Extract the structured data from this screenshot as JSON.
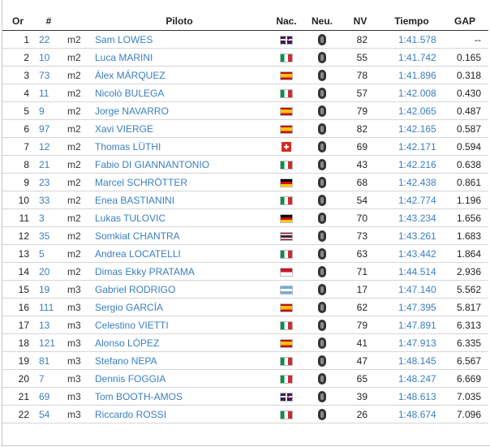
{
  "headers": {
    "or": "Or",
    "num": "#",
    "piloto": "Piloto",
    "nac": "Nac.",
    "neu": "Neu.",
    "nv": "NV",
    "tiempo": "Tiempo",
    "gap": "GAP"
  },
  "rows": [
    {
      "or": "1",
      "num": "22",
      "cat": "m2",
      "piloto": "Sam LOWES",
      "flag": "gb",
      "nv": "82",
      "tiempo": "1:41.578",
      "gap": "--"
    },
    {
      "or": "2",
      "num": "10",
      "cat": "m2",
      "piloto": "Luca MARINI",
      "flag": "it",
      "nv": "55",
      "tiempo": "1:41.742",
      "gap": "0.165"
    },
    {
      "or": "3",
      "num": "73",
      "cat": "m2",
      "piloto": "Álex MÁRQUEZ",
      "flag": "es",
      "nv": "78",
      "tiempo": "1:41.896",
      "gap": "0.318"
    },
    {
      "or": "4",
      "num": "11",
      "cat": "m2",
      "piloto": "Nicolò BULEGA",
      "flag": "it",
      "nv": "57",
      "tiempo": "1:42.008",
      "gap": "0.430"
    },
    {
      "or": "5",
      "num": "9",
      "cat": "m2",
      "piloto": "Jorge NAVARRO",
      "flag": "es",
      "nv": "79",
      "tiempo": "1:42.065",
      "gap": "0.487"
    },
    {
      "or": "6",
      "num": "97",
      "cat": "m2",
      "piloto": "Xavi VIERGE",
      "flag": "es",
      "nv": "82",
      "tiempo": "1:42.165",
      "gap": "0.587"
    },
    {
      "or": "7",
      "num": "12",
      "cat": "m2",
      "piloto": "Thomas LÜTHI",
      "flag": "ch",
      "nv": "69",
      "tiempo": "1:42.171",
      "gap": "0.594"
    },
    {
      "or": "8",
      "num": "21",
      "cat": "m2",
      "piloto": "Fabio DI GIANNANTONIO",
      "flag": "it",
      "nv": "43",
      "tiempo": "1:42.216",
      "gap": "0.638"
    },
    {
      "or": "9",
      "num": "23",
      "cat": "m2",
      "piloto": "Marcel SCHRÖTTER",
      "flag": "de",
      "nv": "68",
      "tiempo": "1:42.438",
      "gap": "0.861"
    },
    {
      "or": "10",
      "num": "33",
      "cat": "m2",
      "piloto": "Enea BASTIANINI",
      "flag": "it",
      "nv": "54",
      "tiempo": "1:42.774",
      "gap": "1.196"
    },
    {
      "or": "11",
      "num": "3",
      "cat": "m2",
      "piloto": "Lukas TULOVIC",
      "flag": "de",
      "nv": "70",
      "tiempo": "1:43.234",
      "gap": "1.656"
    },
    {
      "or": "12",
      "num": "35",
      "cat": "m2",
      "piloto": "Somkiat CHANTRA",
      "flag": "th",
      "nv": "73",
      "tiempo": "1:43.261",
      "gap": "1.683"
    },
    {
      "or": "13",
      "num": "5",
      "cat": "m2",
      "piloto": "Andrea LOCATELLI",
      "flag": "it",
      "nv": "63",
      "tiempo": "1:43.442",
      "gap": "1.864"
    },
    {
      "or": "14",
      "num": "20",
      "cat": "m2",
      "piloto": "Dimas Ekky PRATAMA",
      "flag": "id",
      "nv": "71",
      "tiempo": "1:44.514",
      "gap": "2.936"
    },
    {
      "or": "15",
      "num": "19",
      "cat": "m3",
      "piloto": "Gabriel RODRIGO",
      "flag": "ar",
      "nv": "17",
      "tiempo": "1:47.140",
      "gap": "5.562"
    },
    {
      "or": "16",
      "num": "111",
      "cat": "m3",
      "piloto": "Sergio GARCÍA",
      "flag": "es",
      "nv": "62",
      "tiempo": "1:47.395",
      "gap": "5.817"
    },
    {
      "or": "17",
      "num": "13",
      "cat": "m3",
      "piloto": "Celestino VIETTI",
      "flag": "it",
      "nv": "79",
      "tiempo": "1:47.891",
      "gap": "6.313"
    },
    {
      "or": "18",
      "num": "121",
      "cat": "m3",
      "piloto": "Alonso LÓPEZ",
      "flag": "es",
      "nv": "41",
      "tiempo": "1:47.913",
      "gap": "6.335"
    },
    {
      "or": "19",
      "num": "81",
      "cat": "m3",
      "piloto": "Stefano NEPA",
      "flag": "it",
      "nv": "47",
      "tiempo": "1:48.145",
      "gap": "6.567"
    },
    {
      "or": "20",
      "num": "7",
      "cat": "m3",
      "piloto": "Dennis FOGGIA",
      "flag": "it",
      "nv": "65",
      "tiempo": "1:48.247",
      "gap": "6.669"
    },
    {
      "or": "21",
      "num": "69",
      "cat": "m3",
      "piloto": "Tom BOOTH-AMOS",
      "flag": "gb",
      "nv": "39",
      "tiempo": "1:48.613",
      "gap": "7.035"
    },
    {
      "or": "22",
      "num": "54",
      "cat": "m3",
      "piloto": "Riccardo ROSSI",
      "flag": "it",
      "nv": "26",
      "tiempo": "1:48.674",
      "gap": "7.096"
    }
  ],
  "colors": {
    "link": "#3a7fc1",
    "text": "#222222",
    "divider": "#d6d6d6"
  },
  "icons": {
    "tyre": "tyre-icon"
  }
}
